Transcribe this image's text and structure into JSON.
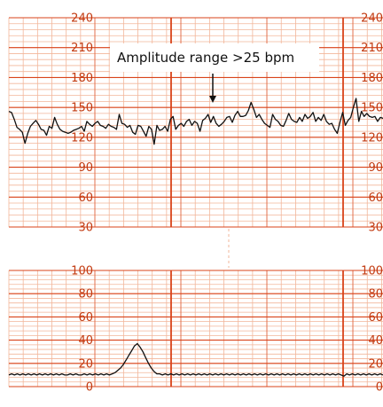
{
  "annotation": "Amplitude range >25 bpm",
  "colors": {
    "grid_major": "#d9431a",
    "grid_minor": "#f2b69a",
    "trace": "#111111",
    "label": "#c23a10",
    "background": "#ffffff"
  },
  "chart_data": [
    {
      "type": "line",
      "title": "",
      "xlabel": "",
      "ylabel": "",
      "ylim": [
        30,
        240
      ],
      "yticks": [
        30,
        60,
        90,
        120,
        150,
        180,
        210,
        240
      ],
      "grid": true,
      "series": [
        {
          "values": [
            146,
            145,
            138,
            130,
            128,
            125,
            114,
            124,
            131,
            134,
            137,
            133,
            128,
            127,
            122,
            131,
            129,
            140,
            133,
            128,
            126,
            125,
            124,
            125,
            127,
            128,
            129,
            131,
            126,
            136,
            133,
            131,
            134,
            136,
            132,
            131,
            129,
            133,
            131,
            130,
            128,
            143,
            134,
            133,
            130,
            132,
            125,
            123,
            132,
            131,
            126,
            121,
            131,
            128,
            113,
            132,
            127,
            128,
            131,
            126,
            138,
            141,
            128,
            132,
            134,
            131,
            136,
            138,
            132,
            136,
            134,
            126,
            137,
            139,
            143,
            135,
            141,
            134,
            131,
            133,
            136,
            140,
            141,
            135,
            142,
            146,
            141,
            141,
            142,
            147,
            155,
            148,
            140,
            143,
            138,
            134,
            132,
            130,
            143,
            138,
            136,
            132,
            131,
            137,
            144,
            138,
            136,
            135,
            140,
            136,
            143,
            139,
            141,
            145,
            136,
            140,
            137,
            143,
            136,
            133,
            134,
            128,
            124,
            135,
            145,
            132,
            137,
            140,
            150,
            159,
            136,
            146,
            141,
            144,
            141,
            140,
            141,
            136,
            140,
            139
          ]
        }
      ]
    },
    {
      "type": "line",
      "title": "",
      "xlabel": "",
      "ylabel": "",
      "ylim": [
        0,
        100
      ],
      "yticks": [
        0,
        20,
        40,
        60,
        80,
        100
      ],
      "grid": true,
      "series": [
        {
          "values": [
            10,
            11,
            10,
            11,
            10,
            11,
            10,
            11,
            10,
            11,
            10,
            11,
            10,
            11,
            10,
            11,
            10,
            11,
            10,
            11,
            10,
            10,
            11,
            10,
            11,
            10,
            10,
            11,
            10,
            11,
            10,
            11,
            10,
            11,
            10,
            11,
            10,
            11,
            12,
            14,
            16,
            19,
            23,
            27,
            31,
            35,
            37,
            34,
            30,
            25,
            20,
            16,
            13,
            11,
            11,
            10,
            11,
            10,
            11,
            10,
            11,
            10,
            11,
            10,
            11,
            10,
            11,
            10,
            11,
            10,
            11,
            10,
            11,
            10,
            11,
            10,
            11,
            10,
            11,
            10,
            11,
            10,
            11,
            10,
            11,
            10,
            11,
            10,
            11,
            10,
            11,
            10,
            11,
            10,
            11,
            10,
            11,
            10,
            11,
            10,
            11,
            10,
            11,
            10,
            11,
            10,
            11,
            10,
            11,
            10,
            11,
            10,
            11,
            10,
            11,
            10,
            11,
            10,
            11,
            10,
            9,
            11,
            10,
            11,
            10,
            11,
            10,
            11,
            10,
            11,
            10,
            11,
            10,
            11,
            10
          ]
        }
      ]
    }
  ]
}
